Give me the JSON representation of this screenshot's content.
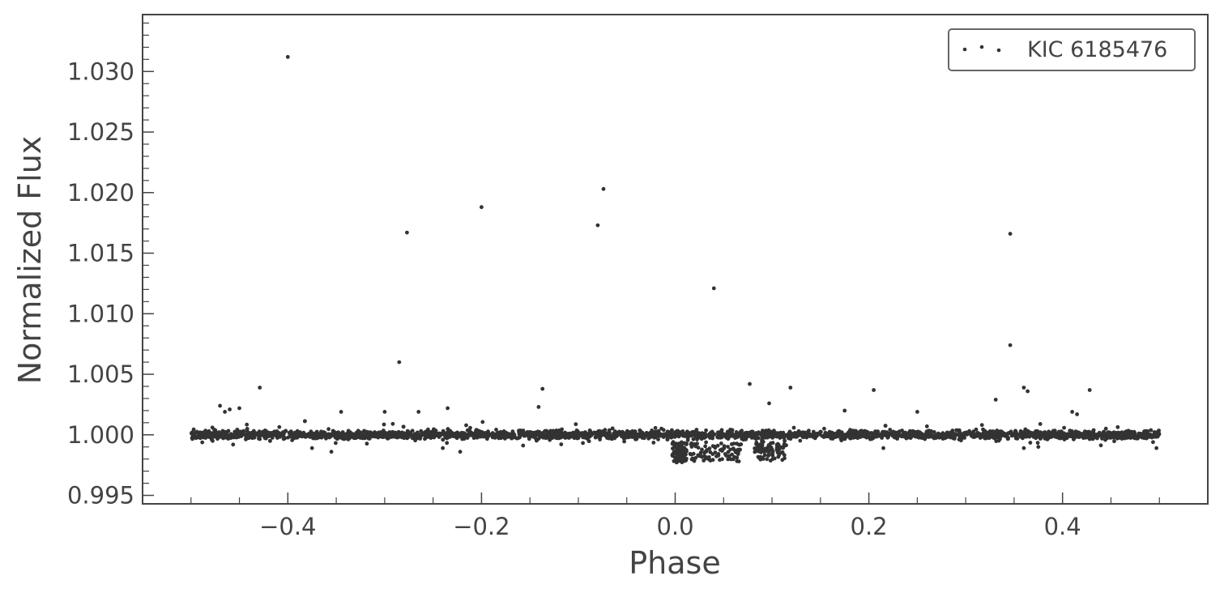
{
  "chart_data": {
    "type": "scatter",
    "title": "",
    "xlabel": "Phase",
    "ylabel": "Normalized Flux",
    "xlim": [
      -0.55,
      0.55
    ],
    "ylim": [
      0.9943,
      1.0347
    ],
    "x_ticks": [
      -0.4,
      -0.2,
      0.0,
      0.2,
      0.4
    ],
    "x_tick_labels": [
      "−0.4",
      "−0.2",
      "0.0",
      "0.2",
      "0.4"
    ],
    "y_ticks": [
      0.995,
      1.0,
      1.005,
      1.01,
      1.015,
      1.02,
      1.025,
      1.03
    ],
    "y_tick_labels": [
      "0.995",
      "1.000",
      "1.005",
      "1.010",
      "1.015",
      "1.020",
      "1.025",
      "1.030"
    ],
    "grid": false,
    "legend": {
      "position": "top-right",
      "entries": [
        "KIC 6185476"
      ]
    },
    "colors": {
      "points": "#333333",
      "axes": "#444444",
      "legend_border": "#666666"
    },
    "baseline": {
      "x_range": [
        -0.5,
        0.5
      ],
      "level": 1.0,
      "scatter": 0.0003
    },
    "dips": [
      {
        "x_range": [
          -0.003,
          0.012
        ],
        "min": 0.9977
      },
      {
        "x_range": [
          0.015,
          0.068
        ],
        "min": 0.9978
      },
      {
        "x_range": [
          0.082,
          0.113
        ],
        "min": 0.9978
      }
    ],
    "outliers": [
      {
        "x": -0.4,
        "y": 1.0312
      },
      {
        "x": -0.277,
        "y": 1.0167
      },
      {
        "x": -0.2,
        "y": 1.0188
      },
      {
        "x": -0.285,
        "y": 1.006
      },
      {
        "x": -0.429,
        "y": 1.0039
      },
      {
        "x": -0.137,
        "y": 1.0038
      },
      {
        "x": -0.141,
        "y": 1.0023
      },
      {
        "x": -0.08,
        "y": 1.0173
      },
      {
        "x": -0.074,
        "y": 1.0203
      },
      {
        "x": 0.04,
        "y": 1.0121
      },
      {
        "x": 0.077,
        "y": 1.0042
      },
      {
        "x": 0.119,
        "y": 1.0039
      },
      {
        "x": 0.097,
        "y": 1.0026
      },
      {
        "x": 0.205,
        "y": 1.0037
      },
      {
        "x": 0.331,
        "y": 1.0029
      },
      {
        "x": 0.346,
        "y": 1.0166
      },
      {
        "x": 0.346,
        "y": 1.0074
      },
      {
        "x": 0.36,
        "y": 1.0039
      },
      {
        "x": 0.364,
        "y": 1.0036
      },
      {
        "x": 0.428,
        "y": 1.0037
      },
      {
        "x": -0.47,
        "y": 1.0024
      },
      {
        "x": -0.465,
        "y": 1.0019
      },
      {
        "x": -0.46,
        "y": 1.0021
      },
      {
        "x": -0.45,
        "y": 1.0022
      },
      {
        "x": -0.345,
        "y": 1.0019
      },
      {
        "x": -0.3,
        "y": 1.0019
      },
      {
        "x": -0.265,
        "y": 1.0019
      },
      {
        "x": -0.235,
        "y": 1.0022
      },
      {
        "x": 0.175,
        "y": 1.002
      },
      {
        "x": 0.25,
        "y": 1.0019
      },
      {
        "x": 0.41,
        "y": 1.0019
      },
      {
        "x": 0.415,
        "y": 1.0017
      },
      {
        "x": -0.375,
        "y": 0.9989
      },
      {
        "x": -0.355,
        "y": 0.9986
      },
      {
        "x": -0.222,
        "y": 0.9986
      },
      {
        "x": -0.24,
        "y": 0.9989
      },
      {
        "x": 0.215,
        "y": 0.9989
      },
      {
        "x": 0.36,
        "y": 0.9989
      },
      {
        "x": 0.375,
        "y": 0.999
      },
      {
        "x": 0.497,
        "y": 0.9989
      }
    ]
  }
}
